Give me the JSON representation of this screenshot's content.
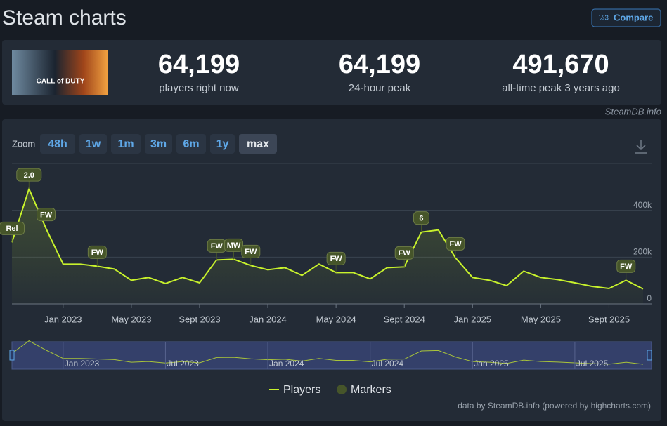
{
  "header": {
    "title": "Steam charts",
    "compare": "Compare"
  },
  "game": {
    "cover_text": "CALL of DUTY"
  },
  "stats": [
    {
      "value": "64,199",
      "label": "players right now"
    },
    {
      "value": "64,199",
      "label": "24-hour peak"
    },
    {
      "value": "491,670",
      "label": "all-time peak 3 years ago"
    }
  ],
  "source": "SteamDB.info",
  "zoom": {
    "label": "Zoom",
    "buttons": [
      "48h",
      "1w",
      "1m",
      "3m",
      "6m",
      "1y",
      "max"
    ],
    "active": 6
  },
  "chart_data": {
    "type": "line",
    "x": [
      "2022-10",
      "2022-11",
      "2022-12",
      "2023-01",
      "2023-02",
      "2023-03",
      "2023-04",
      "2023-05",
      "2023-06",
      "2023-07",
      "2023-08",
      "2023-09",
      "2023-10",
      "2023-11",
      "2023-12",
      "2024-01",
      "2024-02",
      "2024-03",
      "2024-04",
      "2024-05",
      "2024-06",
      "2024-07",
      "2024-08",
      "2024-09",
      "2024-10",
      "2024-11",
      "2024-12",
      "2025-01",
      "2025-02",
      "2025-03",
      "2025-04",
      "2025-05",
      "2025-06",
      "2025-07",
      "2025-08",
      "2025-09",
      "2025-10",
      "2025-11"
    ],
    "series": [
      {
        "name": "Players",
        "color": "#c8f22c",
        "values": [
          263000,
          491670,
          322000,
          170000,
          170000,
          161000,
          149000,
          101000,
          113000,
          87000,
          113000,
          90000,
          188000,
          191000,
          164000,
          146000,
          155000,
          122000,
          170000,
          134000,
          134000,
          107000,
          155000,
          158000,
          307000,
          316000,
          197000,
          113000,
          101000,
          78000,
          140000,
          113000,
          104000,
          90000,
          75000,
          66000,
          101000,
          64199
        ]
      }
    ],
    "markers": {
      "name": "Markers",
      "color": "#46552a",
      "points": [
        {
          "x": "2022-10",
          "label": "Rel"
        },
        {
          "x": "2022-11",
          "label": "2.0"
        },
        {
          "x": "2022-12",
          "label": "FW"
        },
        {
          "x": "2023-03",
          "label": "FW"
        },
        {
          "x": "2023-10",
          "label": "FW"
        },
        {
          "x": "2023-11",
          "label": "MW"
        },
        {
          "x": "2023-12",
          "label": "FW"
        },
        {
          "x": "2024-05",
          "label": "FW"
        },
        {
          "x": "2024-09",
          "label": "FW"
        },
        {
          "x": "2024-10",
          "label": "6"
        },
        {
          "x": "2024-12",
          "label": "FW"
        },
        {
          "x": "2025-10",
          "label": "FW"
        }
      ]
    },
    "xlim": [
      "2022-10",
      "2025-11"
    ],
    "xticks": [
      {
        "value": "2023-01",
        "label": "Jan 2023"
      },
      {
        "value": "2023-05",
        "label": "May 2023"
      },
      {
        "value": "2023-09",
        "label": "Sept 2023"
      },
      {
        "value": "2024-01",
        "label": "Jan 2024"
      },
      {
        "value": "2024-05",
        "label": "May 2024"
      },
      {
        "value": "2024-09",
        "label": "Sept 2024"
      },
      {
        "value": "2025-01",
        "label": "Jan 2025"
      },
      {
        "value": "2025-05",
        "label": "May 2025"
      },
      {
        "value": "2025-09",
        "label": "Sept 2025"
      }
    ],
    "ylim": [
      0,
      600000
    ],
    "yticks": [
      0,
      {
        "value": 200000,
        "label": "200k"
      },
      {
        "value": 400000,
        "label": "400k"
      }
    ],
    "grid": true,
    "navigator_ticks": [
      {
        "value": "2023-01",
        "label": "Jan 2023"
      },
      {
        "value": "2023-07",
        "label": "Jul 2023"
      },
      {
        "value": "2024-01",
        "label": "Jan 2024"
      },
      {
        "value": "2024-07",
        "label": "Jul 2024"
      },
      {
        "value": "2025-01",
        "label": "Jan 2025"
      },
      {
        "value": "2025-07",
        "label": "Jul 2025"
      }
    ],
    "credits": "data by SteamDB.info (powered by highcharts.com)"
  }
}
